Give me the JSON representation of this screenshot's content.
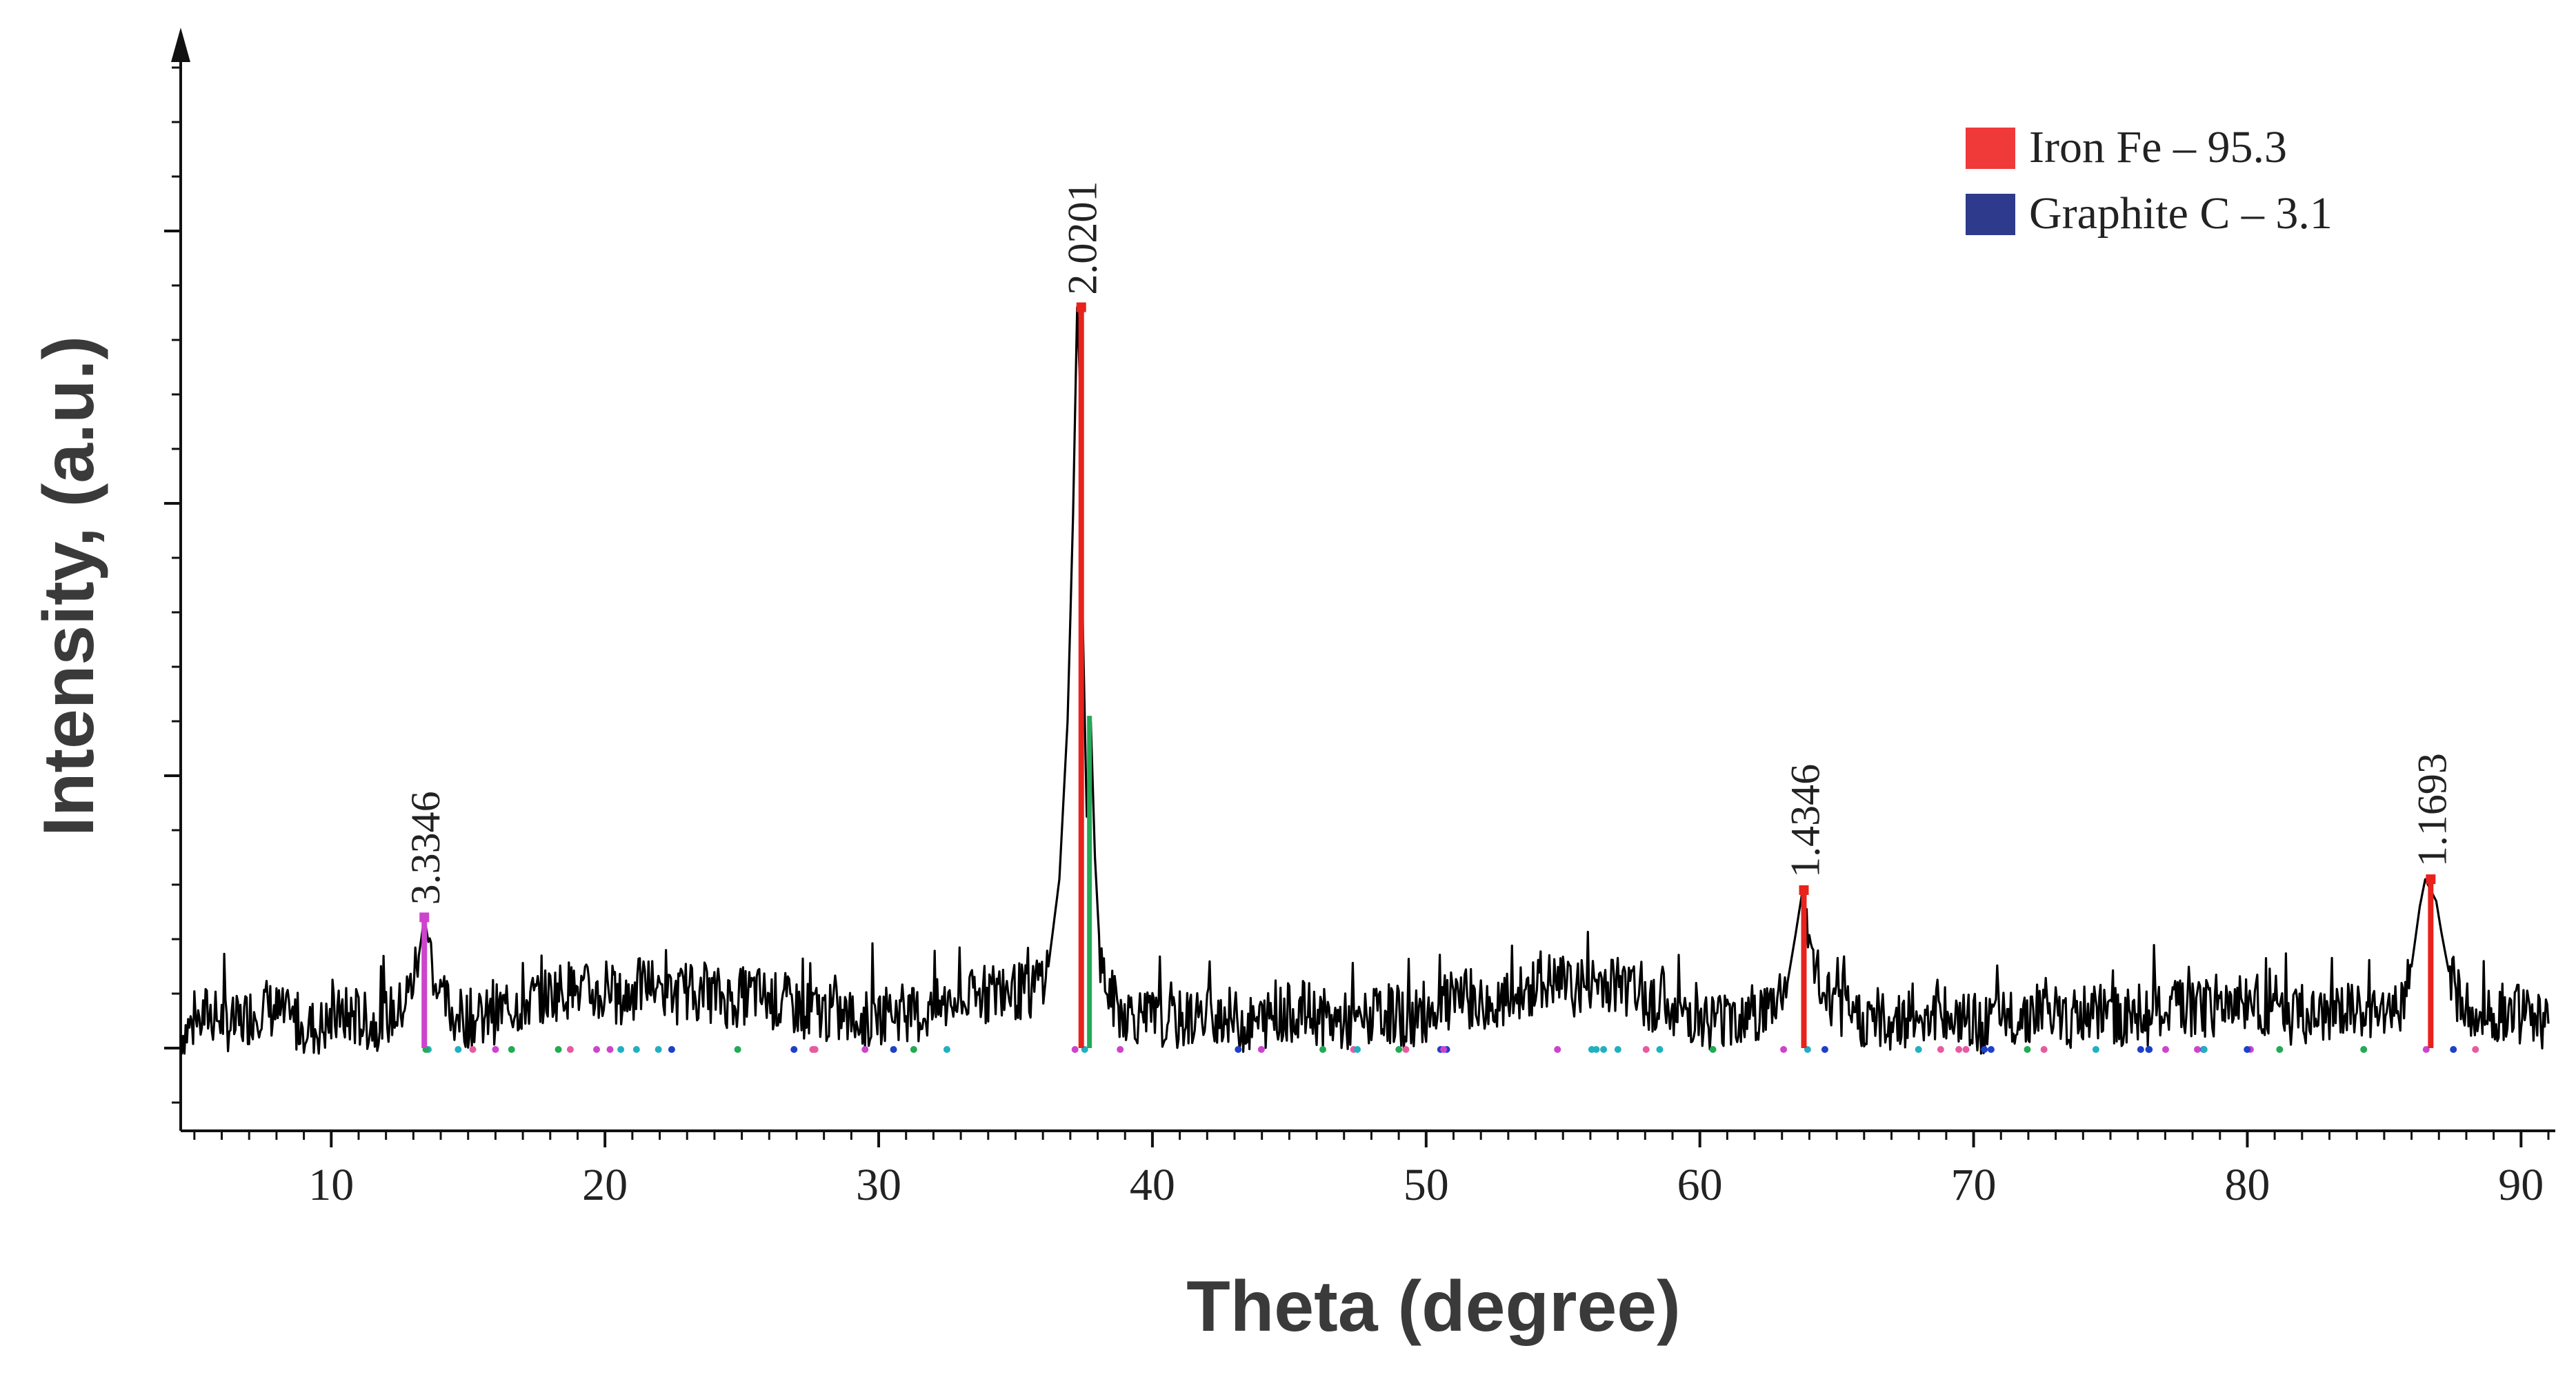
{
  "chart_data": {
    "type": "line",
    "title": "",
    "xlabel": "Theta (degree)",
    "ylabel": "Intensity, (a.u.)",
    "xlim": [
      4.5,
      91
    ],
    "ylim": [
      -0.6,
      4.6
    ],
    "xticks": [
      10,
      20,
      30,
      40,
      50,
      60,
      70,
      80,
      90
    ],
    "y_tick_labels_shown": false,
    "grid": false,
    "legend_position": "top-right",
    "legend": [
      {
        "name": "Iron Fe – 95.3",
        "color": "#f03a3a"
      },
      {
        "name": "Graphite C – 3.1",
        "color": "#2e3a8c"
      }
    ],
    "peaks": [
      {
        "x": 13.4,
        "y": 0.48,
        "label": "3.3346",
        "color": "#cc44cc"
      },
      {
        "x": 37.4,
        "y": 2.72,
        "label": "2.0201",
        "color": "#e8221c"
      },
      {
        "x": 63.8,
        "y": 0.58,
        "label": "1.4346",
        "color": "#e8221c"
      },
      {
        "x": 86.7,
        "y": 0.62,
        "label": "1.1693",
        "color": "#e8221c"
      }
    ],
    "series": [
      {
        "color": "#000000",
        "x": [
          4.5,
          5.5,
          6.5,
          7.5,
          8.5,
          9.5,
          10.5,
          11.5,
          12.5,
          12.9,
          13.2,
          13.4,
          13.6,
          13.9,
          14.5,
          15.5,
          16.5,
          17.5,
          18.5,
          19.5,
          20.5,
          21.5,
          22.5,
          23.5,
          24.5,
          25.5,
          26.5,
          27.5,
          28.5,
          29.5,
          30.5,
          31.5,
          32.5,
          33.5,
          34.5,
          35.5,
          36.2,
          36.6,
          36.9,
          37.1,
          37.25,
          37.35,
          37.45,
          37.6,
          37.75,
          37.9,
          38.1,
          38.4,
          38.8,
          39.5,
          40.5,
          41.5,
          42.5,
          43.5,
          44.5,
          45.5,
          46.5,
          47.5,
          48.5,
          49.5,
          50.5,
          51.5,
          52.5,
          53.5,
          54.5,
          55.5,
          56.5,
          57.5,
          58.5,
          59.5,
          60.5,
          61.5,
          62.5,
          63.2,
          63.5,
          63.75,
          63.9,
          64.1,
          64.4,
          64.8,
          65.5,
          66.5,
          67.5,
          68.5,
          69.5,
          70.5,
          71.5,
          72.5,
          73.5,
          74.5,
          75.5,
          76.5,
          77.5,
          78.5,
          79.5,
          80.5,
          81.5,
          82.5,
          83.5,
          84.5,
          85.5,
          86.0,
          86.3,
          86.5,
          86.7,
          86.9,
          87.1,
          87.4,
          87.8,
          88.5,
          89.5,
          90.5,
          91.0
        ],
        "y": [
          0.05,
          0.13,
          0.08,
          0.16,
          0.1,
          0.07,
          0.12,
          0.09,
          0.14,
          0.22,
          0.34,
          0.48,
          0.36,
          0.2,
          0.12,
          0.1,
          0.15,
          0.18,
          0.22,
          0.2,
          0.17,
          0.24,
          0.19,
          0.21,
          0.18,
          0.2,
          0.16,
          0.14,
          0.12,
          0.1,
          0.14,
          0.12,
          0.16,
          0.18,
          0.22,
          0.2,
          0.3,
          0.62,
          1.2,
          1.95,
          2.72,
          2.45,
          1.6,
          0.85,
          1.2,
          0.7,
          0.32,
          0.2,
          0.14,
          0.12,
          0.09,
          0.11,
          0.13,
          0.08,
          0.12,
          0.14,
          0.1,
          0.09,
          0.13,
          0.1,
          0.16,
          0.18,
          0.14,
          0.2,
          0.24,
          0.22,
          0.25,
          0.2,
          0.16,
          0.13,
          0.1,
          0.12,
          0.14,
          0.24,
          0.42,
          0.58,
          0.4,
          0.34,
          0.22,
          0.15,
          0.12,
          0.09,
          0.11,
          0.13,
          0.1,
          0.08,
          0.12,
          0.14,
          0.1,
          0.13,
          0.11,
          0.12,
          0.15,
          0.14,
          0.18,
          0.16,
          0.12,
          0.1,
          0.13,
          0.11,
          0.14,
          0.3,
          0.52,
          0.62,
          0.58,
          0.54,
          0.42,
          0.26,
          0.16,
          0.12,
          0.14,
          0.1,
          0.09
        ]
      }
    ]
  }
}
